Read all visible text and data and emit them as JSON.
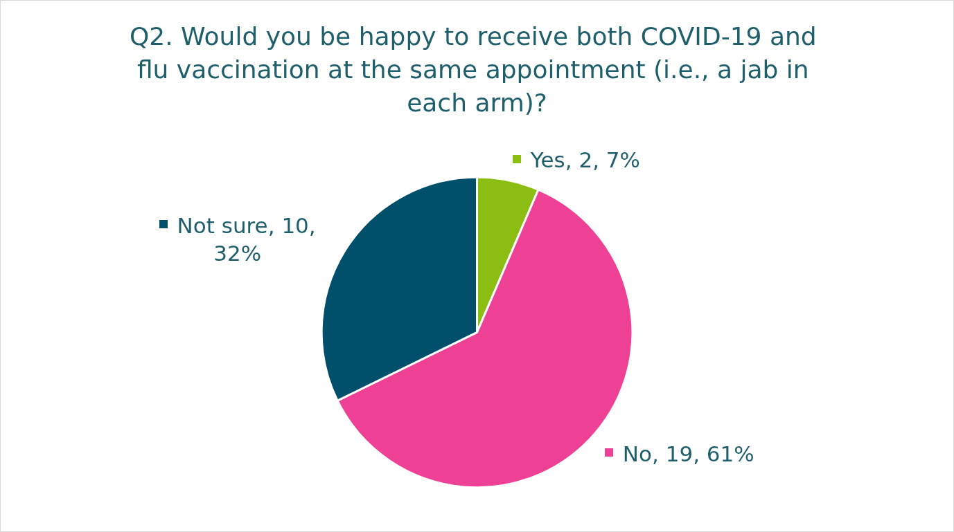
{
  "chart_data": {
    "type": "pie",
    "title": "Q2. Would you be happy to receive both COVID-19 and flu vaccination at the same appointment (i.e., a jab in each arm)?",
    "categories": [
      "Yes",
      "No",
      "Not sure"
    ],
    "values": [
      2,
      19,
      10
    ],
    "colors": [
      "#8cbd12",
      "#ee4196",
      "#00506b"
    ],
    "value_labels": [
      "2, 7%",
      "19, 61%",
      "10, 32%"
    ],
    "legend": "center"
  }
}
